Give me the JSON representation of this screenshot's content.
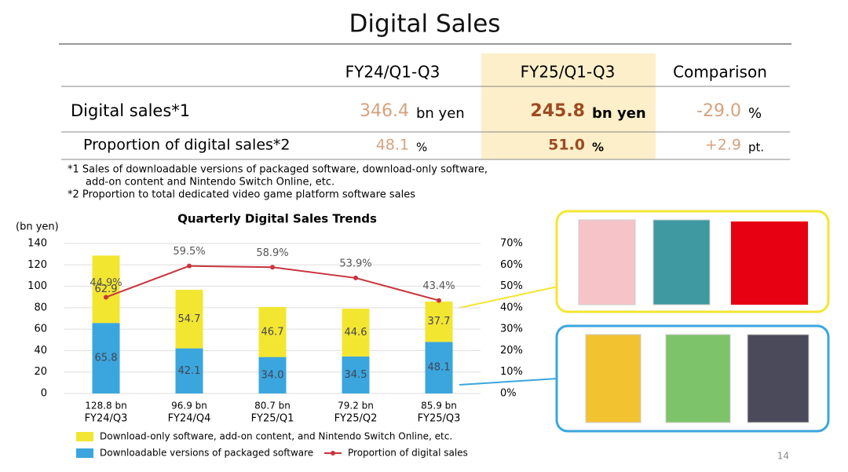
{
  "title": "Digital Sales",
  "table": {
    "columns": [
      "FY24/Q1-Q3",
      "FY25/Q1-Q3",
      "Comparison"
    ],
    "rows": [
      {
        "label": "Digital sales*1",
        "cells": [
          {
            "value": "346.4",
            "unit": "bn yen"
          },
          {
            "value": "245.8",
            "unit": "bn yen"
          },
          {
            "value": "-29.0",
            "unit": "%"
          }
        ]
      },
      {
        "label": "Proportion of digital sales*2",
        "cells": [
          {
            "value": "48.1",
            "unit": "%"
          },
          {
            "value": "51.0",
            "unit": "%"
          },
          {
            "value": "+2.9",
            "unit": "pt."
          }
        ]
      }
    ]
  },
  "notes": [
    "*1 Sales of downloadable versions of packaged software, download-only software,",
    "add-on content and Nintendo Switch Online, etc.",
    "*2 Proportion to total dedicated video game platform software sales"
  ],
  "chart_data": {
    "type": "stacked_bar_line",
    "title": "Quarterly Digital Sales Trends",
    "y_label": "(bn yen)",
    "categories": [
      "FY24/Q3",
      "FY24/Q4",
      "FY25/Q1",
      "FY25/Q2",
      "FY25/Q3"
    ],
    "totals": {
      "values": [
        128.8,
        96.9,
        80.7,
        79.2,
        85.9
      ],
      "value_labels": [
        "128.8 bn",
        "96.9 bn",
        "80.7 bn",
        "79.2 bn",
        "85.9 bn"
      ]
    },
    "series": [
      {
        "name": "Downloadable versions of packaged software",
        "color": "#3aa6dd",
        "values": [
          65.8,
          42.1,
          34.0,
          34.5,
          48.1
        ],
        "value_labels": [
          "65.8",
          "42.1",
          "34.0",
          "34.5",
          "48.1"
        ]
      },
      {
        "name": "Download-only software, add-on content, and Nintendo Switch Online, etc.",
        "color": "#f3e631",
        "values": [
          62.9,
          54.7,
          46.7,
          44.6,
          37.7
        ]
      },
      {
        "name": "Proportion of digital sales",
        "color": "#c9343e",
        "axis": "y2",
        "values": [
          44.9,
          59.5,
          58.9,
          53.9,
          43.4
        ],
        "value_labels": [
          "44.9%",
          "59.5%",
          "58.9%",
          "53.9%",
          "43.4%"
        ]
      }
    ],
    "ylim": [
      0,
      140
    ],
    "yticks": [
      0,
      20,
      40,
      60,
      80,
      100,
      120,
      140
    ],
    "y2lim": [
      0,
      70
    ],
    "y2ticks": [
      {
        "value": 0,
        "label": "0%"
      },
      {
        "value": 10,
        "label": "10%"
      },
      {
        "value": 20,
        "label": "20%"
      },
      {
        "value": 30,
        "label": "30%"
      },
      {
        "value": 40,
        "label": "40%"
      },
      {
        "value": 50,
        "label": "50%"
      },
      {
        "value": 60,
        "label": "60%"
      },
      {
        "value": 70,
        "label": "70%"
      }
    ],
    "grid": true
  },
  "page_number": "14"
}
